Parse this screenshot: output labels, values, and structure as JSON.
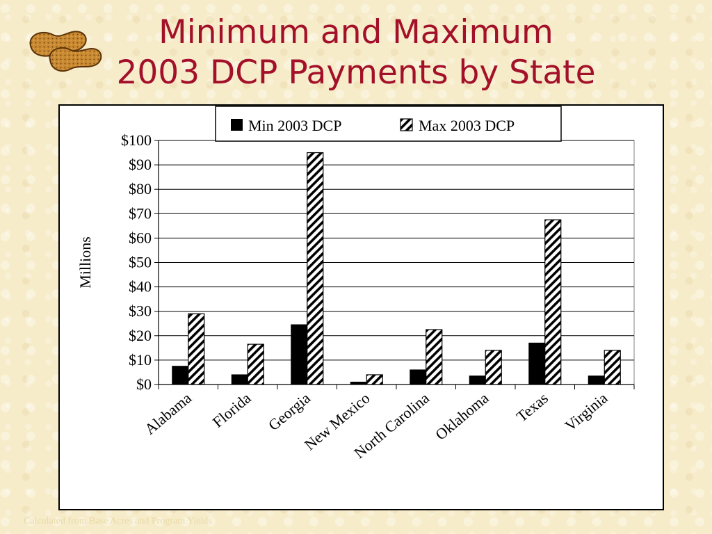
{
  "slide": {
    "title_line1": "Minimum and Maximum",
    "title_line2": "2003 DCP Payments by State",
    "footnote": "Calculated from Base Acres and Program Yields"
  },
  "icons": {
    "logo": "peanut-icon"
  },
  "colors": {
    "title": "#a31029",
    "background": "#f7ecc9",
    "min_bar": "#000000",
    "max_bar_hatch": "#000000"
  },
  "chart_data": {
    "type": "bar",
    "title": "",
    "xlabel": "",
    "ylabel": "Millions",
    "ylim": [
      0,
      100
    ],
    "ytick_labels": [
      "$0",
      "$10",
      "$20",
      "$30",
      "$40",
      "$50",
      "$60",
      "$70",
      "$80",
      "$90",
      "$100"
    ],
    "yticks": [
      0,
      10,
      20,
      30,
      40,
      50,
      60,
      70,
      80,
      90,
      100
    ],
    "grid": true,
    "legend_position": "top",
    "categories": [
      "Alabama",
      "Florida",
      "Georgia",
      "New Mexico",
      "North Carolina",
      "Oklahoma",
      "Texas",
      "Virginia"
    ],
    "series": [
      {
        "name": "Min 2003 DCP",
        "style": "solid",
        "values": [
          7.5,
          4,
          24.5,
          1,
          6,
          3.5,
          17,
          3.5
        ]
      },
      {
        "name": "Max 2003 DCP",
        "style": "hatched",
        "values": [
          29,
          16.5,
          95,
          4,
          22.5,
          14,
          67.5,
          14
        ]
      }
    ]
  }
}
